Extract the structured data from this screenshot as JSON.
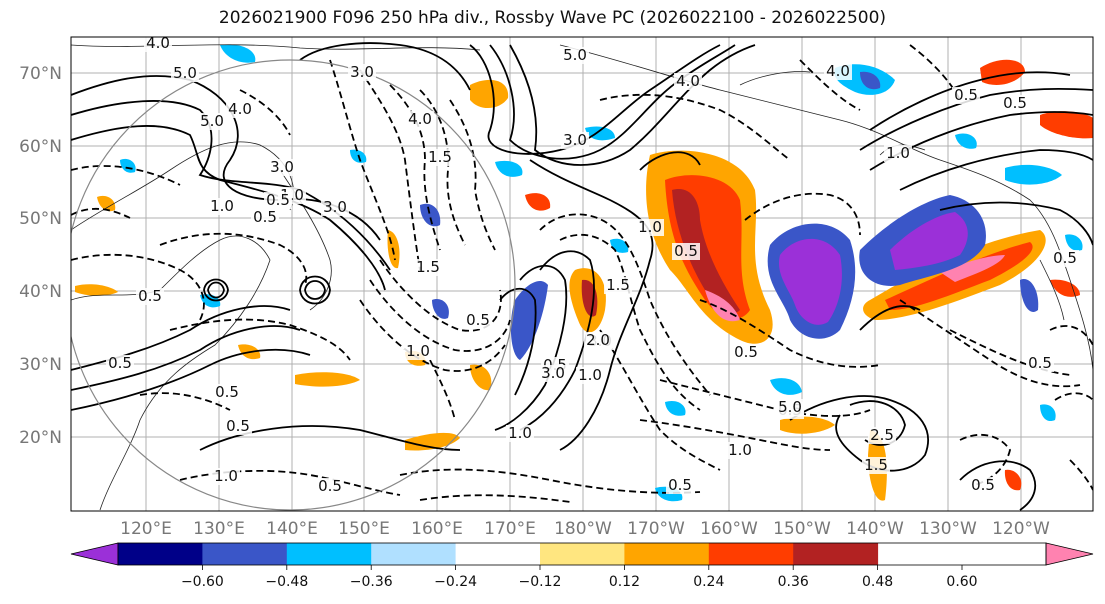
{
  "title": "2026021900 F096 250 hPa div., Rossby Wave PC (2026022100 - 2026022500)",
  "lat_labels": [
    "70°N",
    "60°N",
    "50°N",
    "40°N",
    "30°N",
    "20°N"
  ],
  "lon_labels": [
    "120°E",
    "130°E",
    "140°E",
    "150°E",
    "160°E",
    "170°E",
    "180°W",
    "170°W",
    "160°W",
    "150°W",
    "140°W",
    "130°W",
    "120°W"
  ],
  "colorbar": {
    "ticks": [
      "−0.60",
      "−0.48",
      "−0.36",
      "−0.24",
      "−0.12",
      "0.12",
      "0.24",
      "0.36",
      "0.48",
      "0.60"
    ],
    "colors": [
      "#9b30d8",
      "#000088",
      "#3a56c8",
      "#00bfff",
      "#b0e0ff",
      "#ffffff",
      "#ffe680",
      "#ffa500",
      "#ff3d00",
      "#b22222",
      "#ff82b0"
    ]
  },
  "contour_labels": [
    "4.0",
    "5.0",
    "5.0",
    "4.0",
    "3.0",
    "3.0",
    "4.0",
    "5.0",
    "4.0",
    "3.0",
    "4.0",
    "3.0",
    "0.5",
    "1.0",
    "1.0",
    "1.5",
    "3.0",
    "1.0",
    "0.5",
    "1.0",
    "0.5",
    "0.5",
    "0.5",
    "1.0",
    "2.0",
    "3.0",
    "1.5",
    "1.0",
    "0.5",
    "1.0",
    "0.5",
    "0.5",
    "1.0",
    "2.5",
    "1.5",
    "0.5",
    "0.5",
    "5.0",
    "0.5",
    "0.5",
    "1.0",
    "0.5",
    "0.5",
    "0.5",
    "0.5",
    "0.5",
    "0.5",
    "1.5"
  ]
}
